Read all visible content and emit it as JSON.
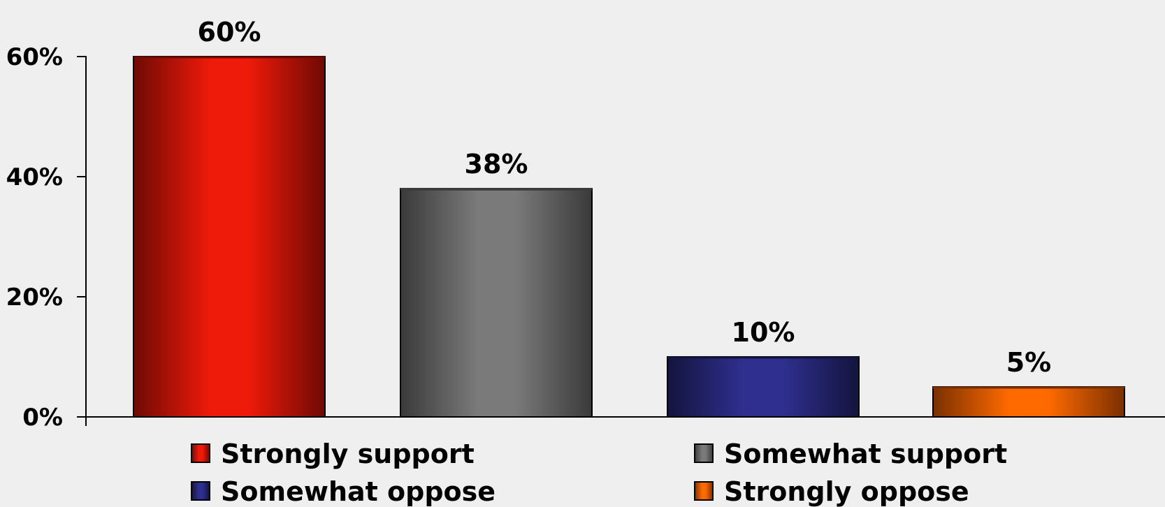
{
  "chart_data": {
    "type": "bar",
    "categories": [
      "Strongly support",
      "Somewhat support",
      "Somewhat oppose",
      "Strongly oppose"
    ],
    "values": [
      60,
      38,
      10,
      5
    ],
    "data_labels": [
      "60%",
      "38%",
      "10%",
      "5%"
    ],
    "ylim": [
      0,
      60
    ],
    "yticks": [
      0,
      20,
      40,
      60
    ],
    "ytick_labels": [
      "0%",
      "20%",
      "40%",
      "60%"
    ],
    "grid": false,
    "legend_position": "bottom",
    "legend": [
      "Strongly support",
      "Somewhat support",
      "Somewhat oppose",
      "Strongly oppose"
    ],
    "colors": [
      "#ee1a0a",
      "#7a7a7a",
      "#2f2f8f",
      "#ff6a00"
    ],
    "dark_colors": [
      "#6e0a04",
      "#3a3a3a",
      "#14143e",
      "#7a3000"
    ],
    "title": "",
    "xlabel": "",
    "ylabel": ""
  }
}
